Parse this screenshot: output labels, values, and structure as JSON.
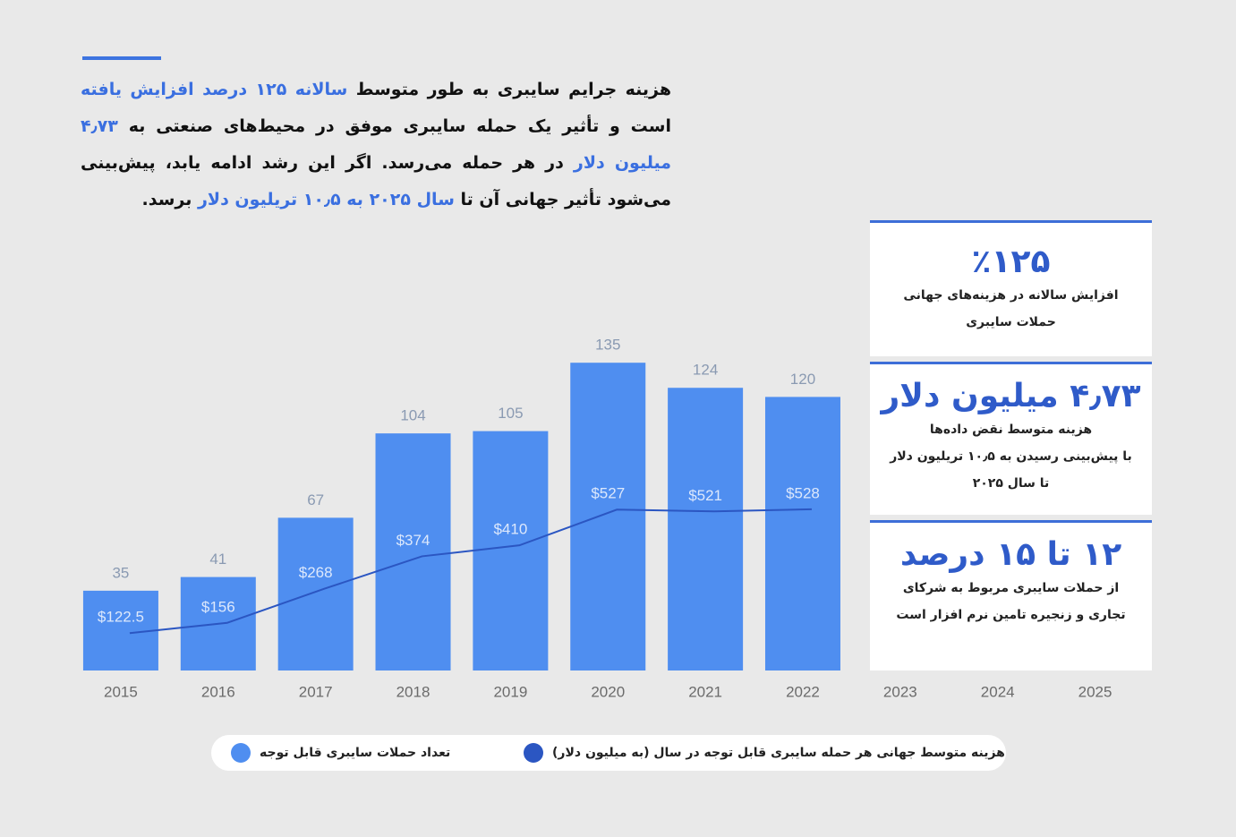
{
  "intro": {
    "segments": [
      {
        "text": "هزینه جرایم سایبری به طور متوسط ",
        "highlight": false
      },
      {
        "text": "سالانه ۱۲۵ درصد افزایش یافته",
        "highlight": true
      },
      {
        "text": " است و تأثیر یک حمله سایبری موفق در محیط‌های صنعتی به ",
        "highlight": false
      },
      {
        "text": "۴٫۷۳ میلیون دلار",
        "highlight": true
      },
      {
        "text": " در هر حمله می‌رسد. اگر این رشد ادامه یابد، پیش‌بینی می‌شود تأثیر جهانی آن تا ",
        "highlight": false
      },
      {
        "text": "سال ۲۰۲۵ به ۱۰٫۵ تریلیون دلار",
        "highlight": true
      },
      {
        "text": " برسد.",
        "highlight": false
      }
    ]
  },
  "stats": [
    {
      "headline": "٪۱۲۵",
      "lines": [
        "افزایش سالانه در هزینه‌های جهانی",
        "حملات سایبری"
      ]
    },
    {
      "headline": "۴٫۷۳ میلیون دلار",
      "lines": [
        "هزینه متوسط نقض داده‌ها",
        "با پیش‌بینی رسیدن به ۱۰٫۵ تریلیون دلار",
        "تا سال ۲۰۲۵"
      ]
    },
    {
      "headline": "۱۲ تا ۱۵ درصد",
      "lines": [
        "از حملات سایبری مربوط به شرکای",
        "تجاری و زنجیره تامین نرم افزار است"
      ]
    }
  ],
  "chart_data": {
    "type": "bar",
    "categories": [
      "2015",
      "2016",
      "2017",
      "2018",
      "2019",
      "2020",
      "2021",
      "2022",
      "2023",
      "2024",
      "2025"
    ],
    "ylim": [
      0,
      150
    ],
    "y2lim": [
      0,
      1120
    ],
    "series": [
      {
        "name": "تعداد حملات سایبری قابل توجه",
        "type": "bar",
        "color": "#4f8ef0",
        "values": [
          35,
          41,
          67,
          104,
          105,
          135,
          124,
          120,
          null,
          null,
          null
        ]
      },
      {
        "name": "هزینه متوسط جهانی هر حمله سایبری قابل توجه در سال (به میلیون دلار)",
        "type": "line",
        "axis": "y2",
        "color": "#2b56c2",
        "values": [
          122.5,
          156,
          268,
          374,
          410,
          527,
          521,
          528,
          null,
          null,
          null
        ],
        "value_labels": [
          "$122.5",
          "$156",
          "$268",
          "$374",
          "$410",
          "$527",
          "$521",
          "$528",
          null,
          null,
          null
        ]
      }
    ]
  }
}
